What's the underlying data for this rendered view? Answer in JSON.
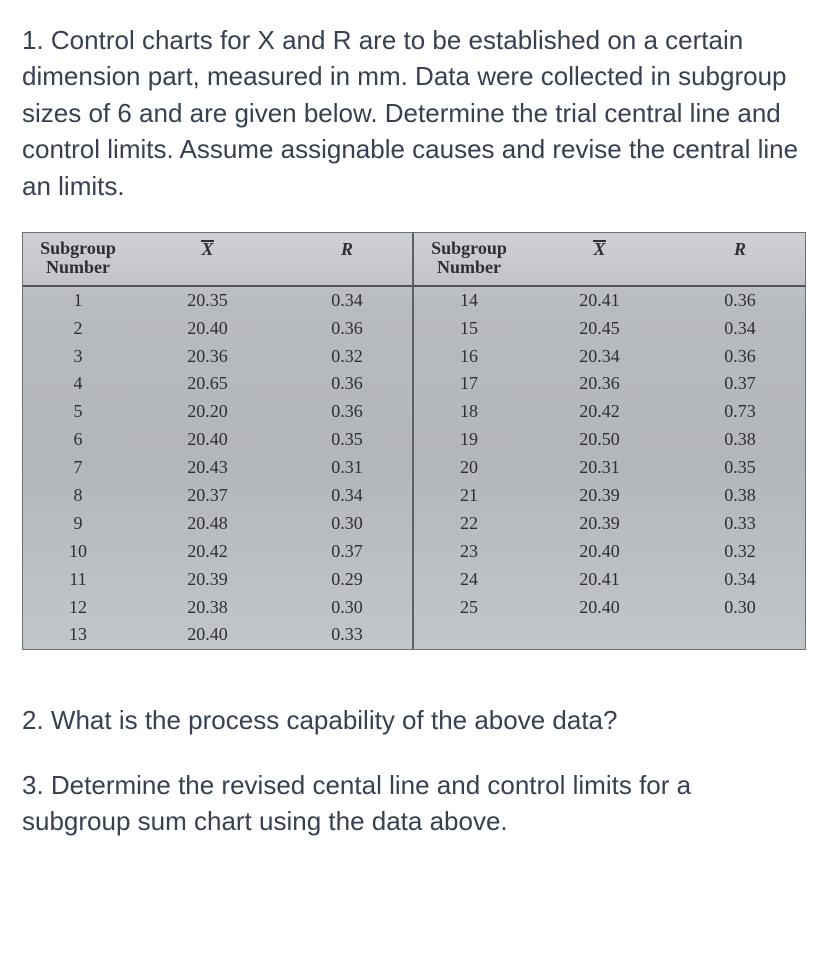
{
  "question1_text": "1. Control charts for X and R are to be established on a certain dimension part, measured in mm. Data were collected in subgroup sizes of 6 and are given below. Determine the trial central line and control limits. Assume assignable causes and revise the central line an limits.",
  "question2_text": "2. What is the process capability of the above data?",
  "question3_text": "3. Determine the revised cental line and control limits for a subgroup sum chart using the data above.",
  "table": {
    "type": "table",
    "background_gradient": [
      "#c9cbce",
      "#b8bbbf",
      "#b3b6bb",
      "#c3c6c9"
    ],
    "border_color": "#6b7076",
    "header_font_weight": "bold",
    "body_font_family": "Times New Roman",
    "columns": {
      "subgroup_label_line1": "Subgroup",
      "subgroup_label_line2": "Number",
      "x_label": "X",
      "r_label": "R"
    },
    "left_rows": [
      {
        "sg": "1",
        "x": "20.35",
        "r": "0.34"
      },
      {
        "sg": "2",
        "x": "20.40",
        "r": "0.36"
      },
      {
        "sg": "3",
        "x": "20.36",
        "r": "0.32"
      },
      {
        "sg": "4",
        "x": "20.65",
        "r": "0.36"
      },
      {
        "sg": "5",
        "x": "20.20",
        "r": "0.36"
      },
      {
        "sg": "6",
        "x": "20.40",
        "r": "0.35"
      },
      {
        "sg": "7",
        "x": "20.43",
        "r": "0.31"
      },
      {
        "sg": "8",
        "x": "20.37",
        "r": "0.34"
      },
      {
        "sg": "9",
        "x": "20.48",
        "r": "0.30"
      },
      {
        "sg": "10",
        "x": "20.42",
        "r": "0.37"
      },
      {
        "sg": "11",
        "x": "20.39",
        "r": "0.29"
      },
      {
        "sg": "12",
        "x": "20.38",
        "r": "0.30"
      },
      {
        "sg": "13",
        "x": "20.40",
        "r": "0.33"
      }
    ],
    "right_rows": [
      {
        "sg": "14",
        "x": "20.41",
        "r": "0.36"
      },
      {
        "sg": "15",
        "x": "20.45",
        "r": "0.34"
      },
      {
        "sg": "16",
        "x": "20.34",
        "r": "0.36"
      },
      {
        "sg": "17",
        "x": "20.36",
        "r": "0.37"
      },
      {
        "sg": "18",
        "x": "20.42",
        "r": "0.73"
      },
      {
        "sg": "19",
        "x": "20.50",
        "r": "0.38"
      },
      {
        "sg": "20",
        "x": "20.31",
        "r": "0.35"
      },
      {
        "sg": "21",
        "x": "20.39",
        "r": "0.38"
      },
      {
        "sg": "22",
        "x": "20.39",
        "r": "0.33"
      },
      {
        "sg": "23",
        "x": "20.40",
        "r": "0.32"
      },
      {
        "sg": "24",
        "x": "20.41",
        "r": "0.34"
      },
      {
        "sg": "25",
        "x": "20.40",
        "r": "0.30"
      }
    ]
  }
}
